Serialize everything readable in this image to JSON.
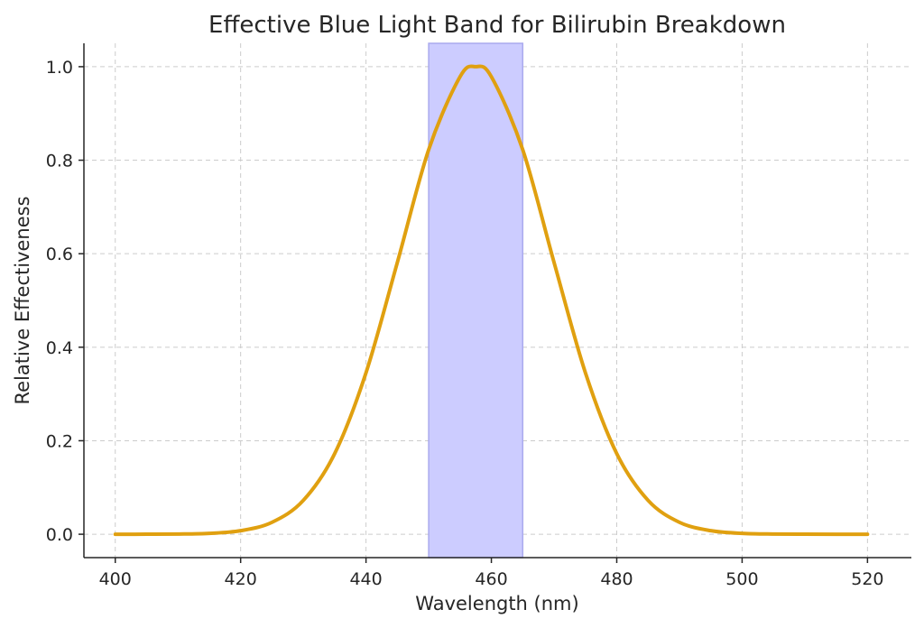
{
  "chart_data": {
    "type": "line",
    "title": "Effective Blue Light Band for Bilirubin Breakdown",
    "xlabel": "Wavelength (nm)",
    "ylabel": "Relative Effectiveness",
    "xlim": [
      395,
      527
    ],
    "ylim": [
      -0.05,
      1.05
    ],
    "xticks": [
      400,
      420,
      440,
      460,
      480,
      500,
      520
    ],
    "xtick_labels": [
      "400",
      "420",
      "440",
      "460",
      "480",
      "500",
      "520"
    ],
    "yticks": [
      0.0,
      0.2,
      0.4,
      0.6,
      0.8,
      1.0
    ],
    "ytick_labels": [
      "0.0",
      "0.2",
      "0.4",
      "0.6",
      "0.8",
      "1.0"
    ],
    "grid": true,
    "highlight_band": {
      "from": 450,
      "to": 465,
      "color": "#ccccff",
      "edge_color": "#aaaaee"
    },
    "series": [
      {
        "name": "effectiveness",
        "color": "#e0a010",
        "x": [
          400,
          405,
          410,
          415,
          420,
          425,
          430,
          435,
          440,
          445,
          450,
          455,
          457.5,
          460,
          465,
          470,
          475,
          480,
          485,
          490,
          495,
          500,
          505,
          510,
          515,
          520
        ],
        "y": [
          0.0,
          0.0001,
          0.0004,
          0.0019,
          0.0076,
          0.0255,
          0.0724,
          0.1724,
          0.3454,
          0.5813,
          0.8226,
          0.9785,
          1.0,
          0.9785,
          0.8226,
          0.5813,
          0.3454,
          0.1724,
          0.0724,
          0.0255,
          0.0076,
          0.0019,
          0.0004,
          0.0001,
          0.0,
          0.0
        ]
      }
    ]
  }
}
